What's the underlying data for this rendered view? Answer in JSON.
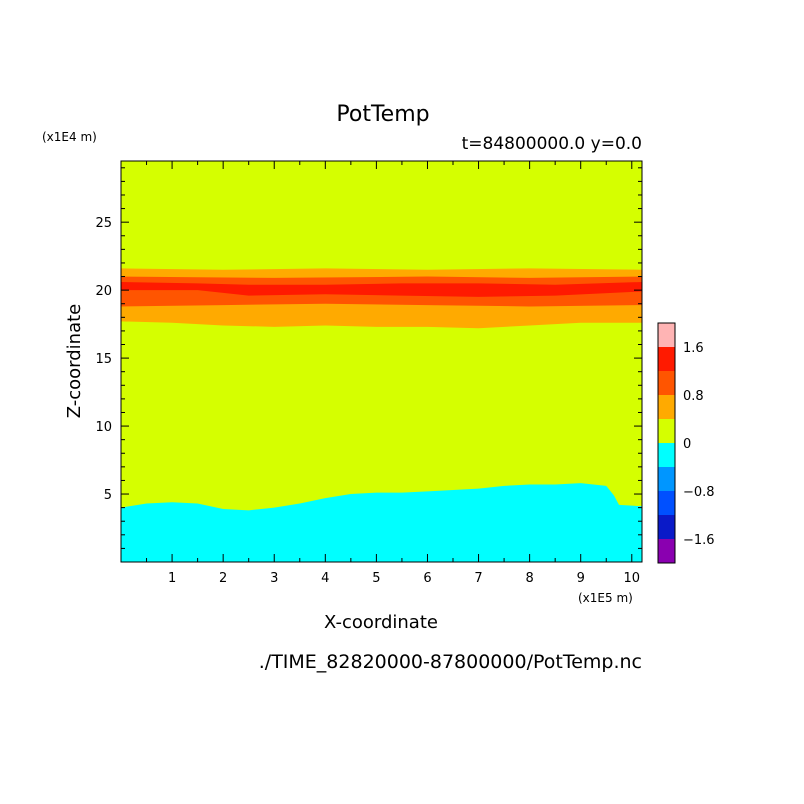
{
  "chart_data": {
    "type": "heatmap",
    "subtype": "filled-contour",
    "title": "PotTemp",
    "subtitle": "t=84800000.0 y=0.0",
    "xlabel": "X-coordinate",
    "ylabel": "Z-coordinate",
    "x_unit": "(x1E5 m)",
    "y_unit": "(x1E4 m)",
    "xlim": [
      0,
      10.2
    ],
    "ylim": [
      0,
      29.5
    ],
    "xticks": [
      "1",
      "2",
      "3",
      "4",
      "5",
      "6",
      "7",
      "8",
      "9",
      "10"
    ],
    "yticks": [
      "5",
      "10",
      "15",
      "20",
      "25"
    ],
    "footer": "./TIME_82820000-87800000/PotTemp.nc",
    "colorbar": {
      "tick_labels": [
        "1.6",
        "0.8",
        "0",
        "-0.8",
        "-1.6"
      ],
      "tick_values": [
        1.6,
        0.8,
        0,
        -0.8,
        -1.6
      ],
      "range": [
        -2.0,
        2.0
      ],
      "levels": [
        {
          "min": -2.0,
          "max": -1.6,
          "color": "#8a00b0"
        },
        {
          "min": -1.6,
          "max": -1.2,
          "color": "#0a1ac8"
        },
        {
          "min": -1.2,
          "max": -0.8,
          "color": "#0050ff"
        },
        {
          "min": -0.8,
          "max": -0.4,
          "color": "#0096ff"
        },
        {
          "min": -0.4,
          "max": 0.0,
          "color": "#00ffff"
        },
        {
          "min": 0.0,
          "max": 0.4,
          "color": "#d5ff00"
        },
        {
          "min": 0.4,
          "max": 0.8,
          "color": "#ffaa00"
        },
        {
          "min": 0.8,
          "max": 1.2,
          "color": "#ff5500"
        },
        {
          "min": 1.2,
          "max": 1.6,
          "color": "#ff1a00"
        },
        {
          "min": 1.6,
          "max": 2.0,
          "color": "#ffb4b4"
        }
      ]
    },
    "regions": [
      {
        "name": "background",
        "level": "0 to 0.4",
        "color": "#d5ff00"
      },
      {
        "name": "lower cold layer",
        "level": "-0.4 to 0",
        "color": "#00ffff",
        "top_boundary": [
          [
            0,
            4.0
          ],
          [
            0.5,
            4.3
          ],
          [
            1,
            4.4
          ],
          [
            1.5,
            4.3
          ],
          [
            2,
            3.9
          ],
          [
            2.5,
            3.8
          ],
          [
            3,
            4.0
          ],
          [
            3.5,
            4.3
          ],
          [
            4,
            4.7
          ],
          [
            4.5,
            5.0
          ],
          [
            5,
            5.1
          ],
          [
            5.5,
            5.1
          ],
          [
            6,
            5.2
          ],
          [
            6.5,
            5.3
          ],
          [
            7,
            5.4
          ],
          [
            7.5,
            5.6
          ],
          [
            8,
            5.7
          ],
          [
            8.5,
            5.7
          ],
          [
            9,
            5.8
          ],
          [
            9.5,
            5.6
          ],
          [
            9.65,
            4.9
          ],
          [
            9.75,
            4.2
          ],
          [
            10.2,
            4.1
          ]
        ]
      },
      {
        "name": "warm layer",
        "level": "0.4 to 0.8",
        "color": "#ffaa00",
        "top_boundary": [
          [
            0,
            21.6
          ],
          [
            2,
            21.5
          ],
          [
            4,
            21.6
          ],
          [
            6,
            21.5
          ],
          [
            8,
            21.6
          ],
          [
            10.2,
            21.5
          ]
        ],
        "bottom_boundary": [
          [
            0,
            17.7
          ],
          [
            1,
            17.6
          ],
          [
            2,
            17.4
          ],
          [
            3,
            17.3
          ],
          [
            4,
            17.4
          ],
          [
            5,
            17.3
          ],
          [
            6,
            17.3
          ],
          [
            7,
            17.2
          ],
          [
            8,
            17.4
          ],
          [
            9,
            17.6
          ],
          [
            10.2,
            17.6
          ]
        ]
      },
      {
        "name": "inner warm layer",
        "level": "0.8 to 1.2",
        "color": "#ff5500",
        "top_boundary": [
          [
            0,
            21.0
          ],
          [
            3,
            20.9
          ],
          [
            6,
            21.0
          ],
          [
            8,
            20.9
          ],
          [
            10.2,
            21.0
          ]
        ],
        "bottom_boundary": [
          [
            0,
            18.8
          ],
          [
            2,
            18.9
          ],
          [
            4,
            19.0
          ],
          [
            6,
            18.9
          ],
          [
            8,
            18.8
          ],
          [
            10.2,
            18.9
          ]
        ]
      },
      {
        "name": "warm core",
        "level": "1.2 to 1.6",
        "color": "#ff1a00",
        "top_boundary": [
          [
            0,
            20.6
          ],
          [
            1.5,
            20.5
          ],
          [
            2.5,
            20.4
          ],
          [
            4,
            20.4
          ],
          [
            5.5,
            20.5
          ],
          [
            7,
            20.5
          ],
          [
            8.5,
            20.4
          ],
          [
            10.2,
            20.6
          ]
        ],
        "bottom_boundary": [
          [
            0,
            20.0
          ],
          [
            1.5,
            20.0
          ],
          [
            2.5,
            19.6
          ],
          [
            4,
            19.7
          ],
          [
            5.5,
            19.6
          ],
          [
            7,
            19.5
          ],
          [
            8.5,
            19.6
          ],
          [
            10.2,
            19.9
          ]
        ]
      }
    ]
  }
}
